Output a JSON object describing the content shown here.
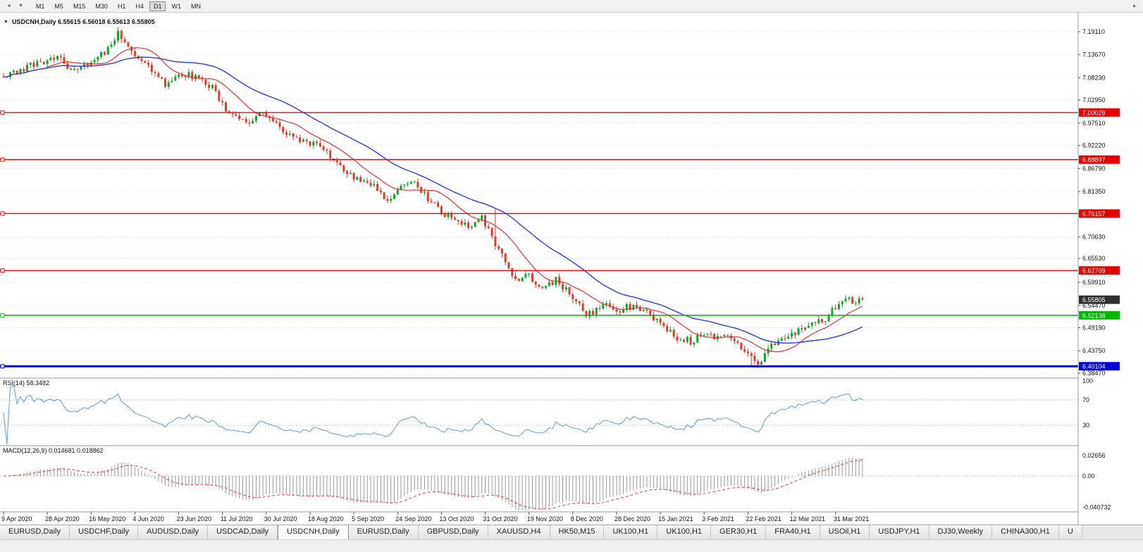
{
  "toolbar": {
    "scroll_left_glyph": "◄",
    "dropdown_glyph": "▼",
    "scroll_up_glyph": "▲",
    "timeframes": [
      "M1",
      "M5",
      "M15",
      "M30",
      "H1",
      "H4",
      "D1",
      "W1",
      "MN"
    ],
    "active_timeframe": "D1"
  },
  "chart": {
    "caret_glyph": "▼",
    "symbol": "USDCNH,Daily",
    "open": "6.55615",
    "high": "6.56018",
    "low": "6.55613",
    "close": "6.55805",
    "title_line": "USDCNH,Daily 6.55615 6.56018 6.55613 6.55805",
    "colors": {
      "bull": "#17a32b",
      "bear": "#e23b2c",
      "ma_fast": "#e03030",
      "ma_slow": "#2a3fd4",
      "grid": "#e4e4e4",
      "separator": "#9a9a9a",
      "axis_text": "#111111"
    },
    "price_axis_labels": [
      "7.19110",
      "7.13670",
      "7.08230",
      "7.02950",
      "6.97510",
      "6.92220",
      "6.86790",
      "6.81350",
      "6.76050",
      "6.70630",
      "6.65530",
      "6.59910",
      "6.54470",
      "6.49190",
      "6.43750",
      "6.38470"
    ],
    "axis_badges": [
      {
        "text": "7.00029",
        "value": 7.00029,
        "bg": "#e60000"
      },
      {
        "text": "6.88897",
        "value": 6.88897,
        "bg": "#e60000"
      },
      {
        "text": "6.76157",
        "value": 6.76157,
        "bg": "#e60000"
      },
      {
        "text": "6.62709",
        "value": 6.62709,
        "bg": "#e60000"
      },
      {
        "text": "6.55805",
        "value": 6.55805,
        "bg": "#2f2f2f"
      },
      {
        "text": "6.52138",
        "value": 6.52138,
        "bg": "#00b400"
      },
      {
        "text": "6.40104",
        "value": 6.40104,
        "bg": "#0000dd"
      }
    ],
    "hlines": [
      {
        "value": 7.00029,
        "color": "#ff0000",
        "width": 1.4
      },
      {
        "value": 6.88897,
        "color": "#ff0000",
        "width": 1.4
      },
      {
        "value": 6.76157,
        "color": "#ff0000",
        "width": 1.4
      },
      {
        "value": 6.62709,
        "color": "#ff0000",
        "width": 1.4
      },
      {
        "value": 6.52138,
        "color": "#00c000",
        "width": 1.6
      },
      {
        "value": 6.40104,
        "color": "#0000e8",
        "width": 3
      }
    ],
    "date_labels": [
      "9 Apr 2020",
      "28 Apr 2020",
      "16 May 2020",
      "4 Jun 2020",
      "23 Jun 2020",
      "11 Jul 2020",
      "30 Jul 2020",
      "18 Aug 2020",
      "5 Sep 2020",
      "24 Sep 2020",
      "13 Oct 2020",
      "31 Oct 2020",
      "19 Nov 2020",
      "8 Dec 2020",
      "28 Dec 2020",
      "15 Jan 2021",
      "3 Feb 2021",
      "22 Feb 2021",
      "12 Mar 2021",
      "31 Mar 2021"
    ],
    "ma": {
      "fast_period": 13,
      "slow_period": 34
    }
  },
  "rsi_panel": {
    "label": "RSI(14) 58.3482",
    "period": 14,
    "line_color": "#5b9bd5",
    "levels": [
      {
        "label": "100",
        "value": 100,
        "line": false
      },
      {
        "label": "70",
        "value": 70,
        "line": true
      },
      {
        "label": "30",
        "value": 30,
        "line": true
      }
    ]
  },
  "macd_panel": {
    "label": "MACD(12,26,9) 0.014681 0.018862",
    "fast": 12,
    "slow": 26,
    "signal": 9,
    "hist_color": "#9a9a9a",
    "signal_color": "#e04040",
    "axis_labels": [
      {
        "label": "0.02656",
        "value": 0.02656
      },
      {
        "label": "0.00",
        "value": 0
      },
      {
        "label": "-0.040732",
        "value": -0.040732
      }
    ]
  },
  "tabs": {
    "active_index": 4,
    "items": [
      "EURUSD,Daily",
      "USDCHF,Daily",
      "AUDUSD,Daily",
      "USDCAD,Daily",
      "USDCNH,Daily",
      "EURUSD,Daily",
      "GBPUSD,Daily",
      "XAUUSD,H4",
      "HK50,M15",
      "UK100,H1",
      "UK100,H1",
      "GER30,H1",
      "FRA40,H1",
      "USOil,H1",
      "USDJPY,H1",
      "DJ30,Weekly",
      "CHINA300,H1",
      "U"
    ]
  },
  "chart_data": {
    "type": "candlestick",
    "symbol": "USDCNH",
    "timeframe": "Daily",
    "x_range": [
      "9 Apr 2020",
      "31 Mar 2021"
    ],
    "y_range": [
      6.3847,
      7.1911
    ],
    "bar_count": 256,
    "last_ohlc": [
      6.55615,
      6.56018,
      6.55613,
      6.55805
    ],
    "support_resistance_levels": [
      7.00029,
      6.88897,
      6.76157,
      6.62709,
      6.52138,
      6.40104
    ],
    "rsi_last": 58.3482,
    "macd_last": [
      0.014681,
      0.018862
    ],
    "approx_price_path": [
      [
        0,
        7.085
      ],
      [
        8,
        7.11
      ],
      [
        16,
        7.135
      ],
      [
        20,
        7.1
      ],
      [
        24,
        7.115
      ],
      [
        30,
        7.14
      ],
      [
        34,
        7.19
      ],
      [
        36,
        7.16
      ],
      [
        40,
        7.125
      ],
      [
        44,
        7.1
      ],
      [
        48,
        7.065
      ],
      [
        53,
        7.09
      ],
      [
        58,
        7.085
      ],
      [
        62,
        7.06
      ],
      [
        66,
        7.005
      ],
      [
        70,
        6.985
      ],
      [
        73,
        6.975
      ],
      [
        76,
        7.0
      ],
      [
        80,
        6.975
      ],
      [
        84,
        6.955
      ],
      [
        88,
        6.935
      ],
      [
        92,
        6.925
      ],
      [
        96,
        6.905
      ],
      [
        100,
        6.875
      ],
      [
        104,
        6.845
      ],
      [
        108,
        6.84
      ],
      [
        112,
        6.81
      ],
      [
        115,
        6.79
      ],
      [
        118,
        6.82
      ],
      [
        121,
        6.84
      ],
      [
        124,
        6.815
      ],
      [
        127,
        6.79
      ],
      [
        130,
        6.765
      ],
      [
        134,
        6.745
      ],
      [
        138,
        6.73
      ],
      [
        142,
        6.755
      ],
      [
        146,
        6.69
      ],
      [
        149,
        6.645
      ],
      [
        152,
        6.6
      ],
      [
        155,
        6.62
      ],
      [
        158,
        6.6
      ],
      [
        161,
        6.59
      ],
      [
        164,
        6.605
      ],
      [
        167,
        6.58
      ],
      [
        170,
        6.555
      ],
      [
        173,
        6.52
      ],
      [
        176,
        6.535
      ],
      [
        179,
        6.55
      ],
      [
        182,
        6.53
      ],
      [
        185,
        6.545
      ],
      [
        188,
        6.535
      ],
      [
        191,
        6.525
      ],
      [
        194,
        6.51
      ],
      [
        197,
        6.49
      ],
      [
        200,
        6.47
      ],
      [
        204,
        6.46
      ],
      [
        208,
        6.475
      ],
      [
        212,
        6.465
      ],
      [
        216,
        6.47
      ],
      [
        219,
        6.445
      ],
      [
        222,
        6.42
      ],
      [
        224,
        6.405
      ],
      [
        226,
        6.43
      ],
      [
        229,
        6.455
      ],
      [
        232,
        6.47
      ],
      [
        235,
        6.48
      ],
      [
        238,
        6.49
      ],
      [
        241,
        6.5
      ],
      [
        244,
        6.515
      ],
      [
        247,
        6.54
      ],
      [
        250,
        6.565
      ],
      [
        252,
        6.555
      ],
      [
        255,
        6.558
      ]
    ],
    "wick_events": [
      [
        34,
        "h",
        7.188
      ],
      [
        146,
        "h",
        6.775
      ],
      [
        222,
        "l",
        6.398
      ]
    ]
  }
}
